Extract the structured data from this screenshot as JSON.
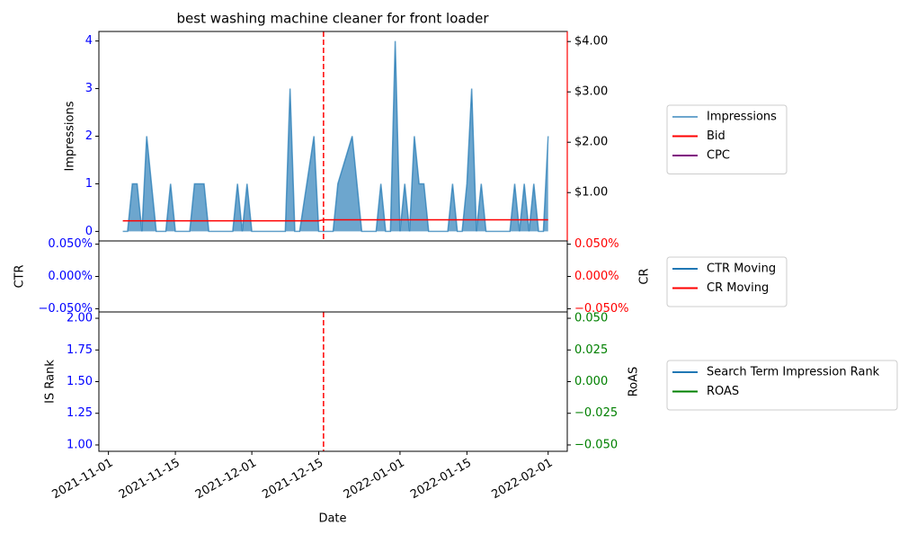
{
  "chart_data": {
    "title": "best washing machine cleaner for front loader",
    "xlabel": "Date",
    "xlim": [
      "2021-10-30",
      "2022-02-05"
    ],
    "xticks": [
      "2021-11-01",
      "2021-11-15",
      "2021-12-01",
      "2021-12-15",
      "2022-01-01",
      "2022-01-15",
      "2022-02-01"
    ],
    "panels": [
      {
        "type": "area",
        "ylabel": "Impressions",
        "ylim": [
          -0.2,
          4.2
        ],
        "yticks": [
          0,
          1,
          2,
          3,
          4
        ],
        "ytick_color": "blue",
        "y2lim": [
          0.04,
          4.2
        ],
        "y2ticks": [
          {
            "value": 1,
            "label": "$1.00"
          },
          {
            "value": 2,
            "label": "$2.00"
          },
          {
            "value": 3,
            "label": "$3.00"
          },
          {
            "value": 4,
            "label": "$4.00"
          }
        ],
        "y2tick_color": "black",
        "y2_spine_color": "red",
        "vline": "2021-12-16",
        "series": [
          {
            "name": "Impressions",
            "color": "#1f77b4",
            "x": [
              "2021-11-04",
              "2021-11-05",
              "2021-11-06",
              "2021-11-07",
              "2021-11-08",
              "2021-11-09",
              "2021-11-11",
              "2021-11-13",
              "2021-11-14",
              "2021-11-15",
              "2021-11-18",
              "2021-11-19",
              "2021-11-21",
              "2021-11-22",
              "2021-11-27",
              "2021-11-28",
              "2021-11-29",
              "2021-11-30",
              "2021-12-01",
              "2021-12-08",
              "2021-12-09",
              "2021-12-10",
              "2021-12-11",
              "2021-12-14",
              "2021-12-15",
              "2021-12-18",
              "2021-12-19",
              "2021-12-22",
              "2021-12-24",
              "2021-12-27",
              "2021-12-28",
              "2021-12-29",
              "2021-12-30",
              "2021-12-31",
              "2022-01-01",
              "2022-01-02",
              "2022-01-03",
              "2022-01-04",
              "2022-01-05",
              "2022-01-06",
              "2022-01-07",
              "2022-01-11",
              "2022-01-12",
              "2022-01-13",
              "2022-01-14",
              "2022-01-15",
              "2022-01-16",
              "2022-01-17",
              "2022-01-18",
              "2022-01-19",
              "2022-01-24",
              "2022-01-25",
              "2022-01-26",
              "2022-01-27",
              "2022-01-28",
              "2022-01-29",
              "2022-01-30",
              "2022-01-31",
              "2022-02-01"
            ],
            "values": [
              0,
              0,
              1,
              1,
              0,
              2,
              0,
              0,
              1,
              0,
              0,
              1,
              1,
              0,
              0,
              1,
              0,
              1,
              0,
              0,
              3,
              0,
              0,
              2,
              0,
              0,
              1,
              2,
              0,
              0,
              1,
              0,
              0,
              4,
              0,
              1,
              0,
              2,
              1,
              1,
              0,
              0,
              1,
              0,
              0,
              1,
              3,
              0,
              1,
              0,
              0,
              1,
              0,
              1,
              0,
              1,
              0,
              0,
              2
            ]
          },
          {
            "name": "Bid",
            "color": "red",
            "axis": "y2",
            "x": [
              "2021-11-04",
              "2021-12-15",
              "2021-12-16",
              "2022-02-01"
            ],
            "values": [
              0.44,
              0.44,
              0.46,
              0.46
            ]
          },
          {
            "name": "CPC",
            "color": "purple",
            "values": []
          }
        ]
      },
      {
        "type": "line",
        "ylabel": "CTR",
        "y2label": "CR",
        "ylim": [
          -0.055,
          0.055
        ],
        "yticks": [
          {
            "value": -0.05,
            "label": "−0.050%"
          },
          {
            "value": 0,
            "label": "0.000%"
          },
          {
            "value": 0.05,
            "label": "0.050%"
          }
        ],
        "ytick_color": "blue",
        "y2lim": [
          -0.055,
          0.055
        ],
        "y2ticks": [
          {
            "value": -0.05,
            "label": "−0.050%"
          },
          {
            "value": 0,
            "label": "0.000%"
          },
          {
            "value": 0.05,
            "label": "0.050%"
          }
        ],
        "y2tick_color": "red",
        "series": [
          {
            "name": "CTR Moving",
            "color": "#1f77b4",
            "values": []
          },
          {
            "name": "CR Moving",
            "color": "red",
            "axis": "y2",
            "values": []
          }
        ]
      },
      {
        "type": "line",
        "ylabel": "IS Rank",
        "y2label": "RoAS",
        "ylim": [
          0.95,
          2.05
        ],
        "yticks": [
          {
            "value": 1,
            "label": "1.00"
          },
          {
            "value": 1.25,
            "label": "1.25"
          },
          {
            "value": 1.5,
            "label": "1.50"
          },
          {
            "value": 1.75,
            "label": "1.75"
          },
          {
            "value": 2,
            "label": "2.00"
          }
        ],
        "ytick_color": "blue",
        "y2lim": [
          -0.055,
          0.055
        ],
        "y2ticks": [
          {
            "value": -0.05,
            "label": "−0.050"
          },
          {
            "value": -0.025,
            "label": "−0.025"
          },
          {
            "value": 0,
            "label": "0.000"
          },
          {
            "value": 0.025,
            "label": "0.025"
          },
          {
            "value": 0.05,
            "label": "0.050"
          }
        ],
        "y2tick_color": "green",
        "vline": "2021-12-16",
        "series": [
          {
            "name": "Search Term Impression Rank",
            "color": "#1f77b4",
            "values": []
          },
          {
            "name": "ROAS",
            "color": "green",
            "axis": "y2",
            "values": []
          }
        ]
      }
    ]
  }
}
